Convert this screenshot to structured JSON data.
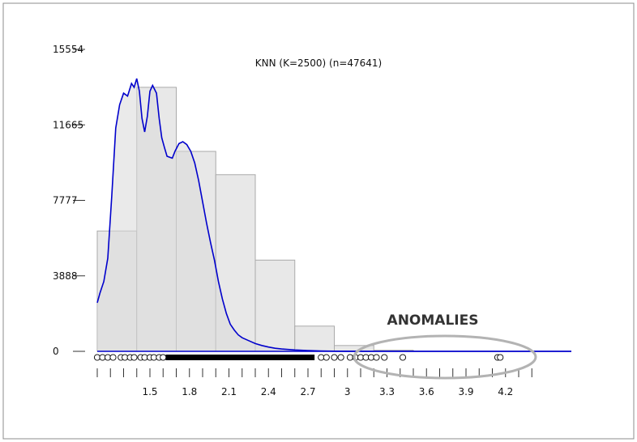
{
  "chart_data": {
    "type": "histogram",
    "title": "KNN (K=2500) (n=47641)",
    "xlabel": "",
    "ylabel": "",
    "xlim": [
      1.1,
      4.7
    ],
    "ylim": [
      0,
      15554
    ],
    "y_ticks": [
      0,
      3888,
      7777,
      11665,
      15554
    ],
    "x_tick_labels": [
      "1.5",
      "1.8",
      "2.1",
      "2.4",
      "2.7",
      "3",
      "3.3",
      "3.6",
      "3.9",
      "4.2"
    ],
    "x_ticks": [
      1.5,
      1.8,
      2.1,
      2.4,
      2.7,
      3.0,
      3.3,
      3.6,
      3.9,
      4.2
    ],
    "bins": [
      {
        "x0": 1.1,
        "x1": 1.4,
        "value": 6200
      },
      {
        "x0": 1.4,
        "x1": 1.7,
        "value": 13600
      },
      {
        "x0": 1.7,
        "x1": 2.0,
        "value": 10300
      },
      {
        "x0": 2.0,
        "x1": 2.3,
        "value": 9100
      },
      {
        "x0": 2.3,
        "x1": 2.6,
        "value": 4700
      },
      {
        "x0": 2.6,
        "x1": 2.9,
        "value": 1300
      },
      {
        "x0": 2.9,
        "x1": 3.2,
        "value": 300
      },
      {
        "x0": 3.2,
        "x1": 3.5,
        "value": 60
      }
    ],
    "density_curve": {
      "x": [
        1.1,
        1.12,
        1.15,
        1.18,
        1.21,
        1.24,
        1.27,
        1.3,
        1.33,
        1.36,
        1.38,
        1.4,
        1.42,
        1.44,
        1.46,
        1.48,
        1.5,
        1.52,
        1.55,
        1.57,
        1.59,
        1.61,
        1.63,
        1.65,
        1.67,
        1.69,
        1.72,
        1.75,
        1.78,
        1.81,
        1.84,
        1.87,
        1.9,
        1.93,
        1.96,
        1.99,
        2.02,
        2.05,
        2.08,
        2.11,
        2.14,
        2.17,
        2.2,
        2.25,
        2.3,
        2.35,
        2.4,
        2.45,
        2.5,
        2.6,
        2.7,
        2.8,
        2.9,
        3.0,
        3.1,
        3.2,
        3.4,
        3.7,
        4.0,
        4.3,
        4.6
      ],
      "y": [
        2500,
        3000,
        3600,
        4800,
        8000,
        11500,
        12700,
        13300,
        13150,
        13800,
        13600,
        14050,
        13400,
        12000,
        11300,
        12100,
        13400,
        13700,
        13300,
        12000,
        11000,
        10500,
        10050,
        10000,
        9950,
        10300,
        10700,
        10800,
        10650,
        10300,
        9700,
        8800,
        7700,
        6600,
        5600,
        4700,
        3600,
        2700,
        1950,
        1400,
        1100,
        850,
        700,
        550,
        400,
        300,
        220,
        160,
        120,
        70,
        40,
        20,
        10,
        5,
        3,
        2,
        1,
        0,
        0,
        0,
        0
      ]
    },
    "outlier_points_label": "ANOMALIES",
    "rug_points_sparse": [
      1.1,
      1.14,
      1.18,
      1.22,
      1.28,
      1.31,
      1.35,
      1.38,
      1.43,
      1.46,
      1.5,
      1.53,
      1.57,
      1.6,
      2.8,
      2.84,
      2.9,
      2.95,
      3.02,
      3.06,
      3.1,
      3.14,
      3.18,
      3.22,
      3.28,
      3.42,
      4.14,
      4.16
    ],
    "rug_dense_range": [
      1.62,
      2.75
    ],
    "anomalies_annotation": {
      "text": "ANOMALIES",
      "x_range": [
        3.05,
        4.35
      ]
    },
    "colors": {
      "curve": "#0000cc",
      "bars_fill": "#e8e8e8",
      "bars_stroke": "#aaaaaa",
      "axis": "#333333",
      "ellipse": "#aaaaaa"
    },
    "grid": false,
    "legend": "none"
  }
}
